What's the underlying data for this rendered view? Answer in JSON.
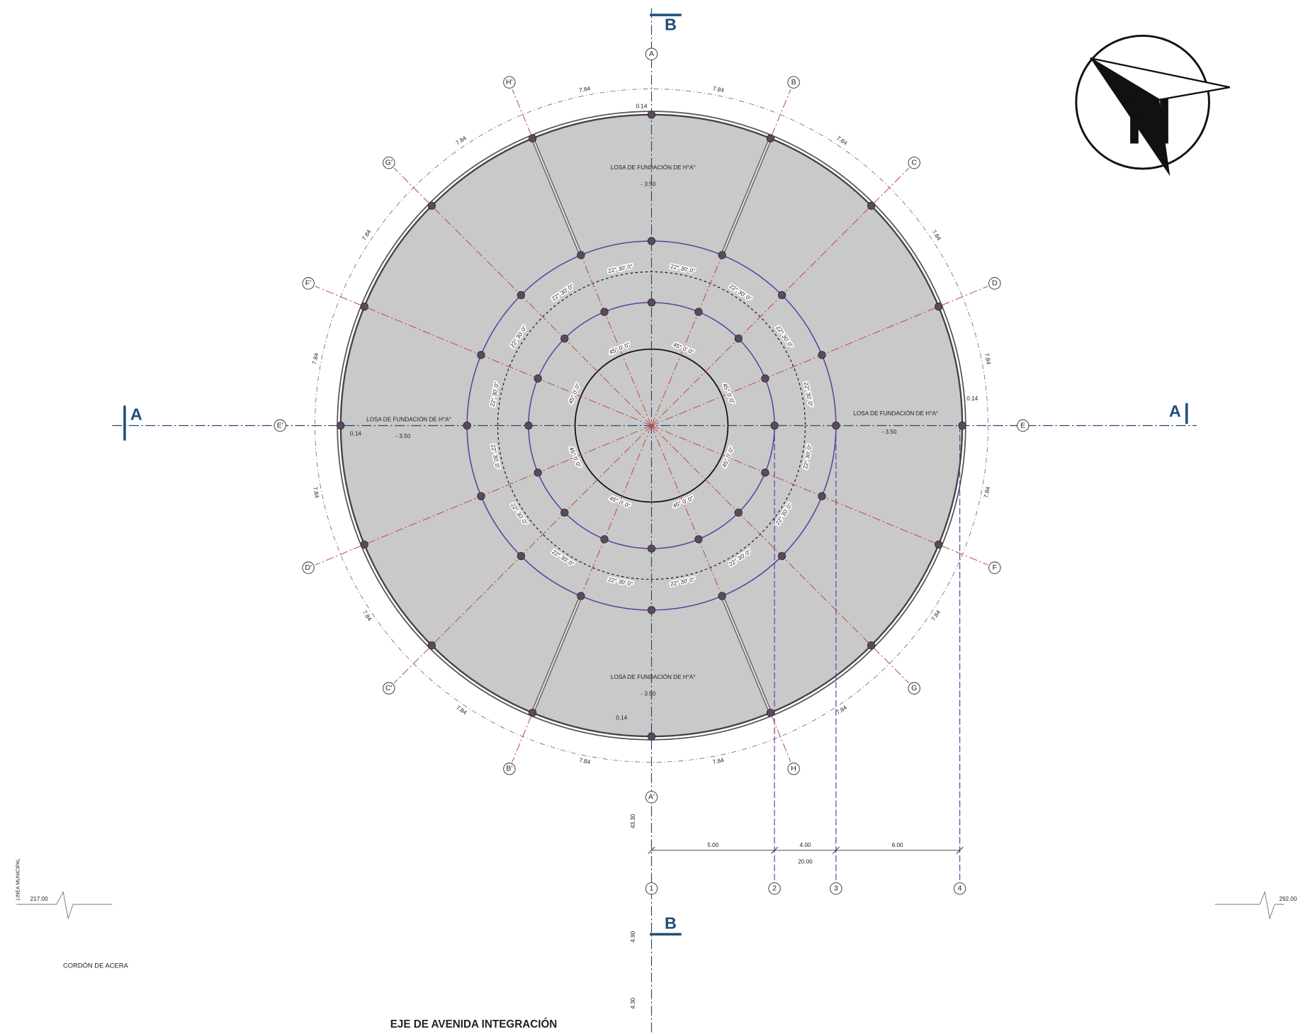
{
  "section_marks": {
    "a_left": "A",
    "a_right": "A",
    "b_top": "B",
    "b_bottom": "B"
  },
  "axes": [
    "A",
    "B",
    "C",
    "D",
    "E",
    "F",
    "G",
    "H",
    "A'",
    "B'",
    "C'",
    "D'",
    "E'",
    "F'",
    "G'",
    "H'"
  ],
  "ring_dimensions": [
    "7.84",
    "7.84",
    "7.84",
    "7.84",
    "7.84",
    "7.84",
    "7.84",
    "7.84",
    "7.84",
    "7.84",
    "7.84",
    "7.84",
    "7.84",
    "7.84",
    "7.84",
    "7.84"
  ],
  "angles_22": [
    "22° 30' 0\"",
    "22° 30' 0\"",
    "22° 30' 0\"",
    "22° 30' 0\"",
    "22° 30' 0\"",
    "22° 30' 0\"",
    "22° 30' 0\"",
    "22° 30' 0\"",
    "22° 30' 0\"",
    "22° 30' 0\"",
    "22° 30' 0\"",
    "22° 30' 0\"",
    "22° 30' 0\"",
    "22° 30' 0\"",
    "22° 30' 0\"",
    "22° 30' 0\""
  ],
  "angles_45": [
    "45° 0' 0\"",
    "45° 0' 0\"",
    "45° 0' 0\"",
    "45° 0' 0\"",
    "45° 0' 0\"",
    "45° 0' 0\"",
    "45° 0' 0\"",
    "45° 0' 0\""
  ],
  "slab_labels": [
    "LOSA DE FUNDACIÓN DE H°A°",
    "LOSA DE FUNDACIÓN DE H°A°",
    "LOSA DE FUNDACIÓN DE H°A°",
    "LOSA DE FUNDACIÓN DE H°A°"
  ],
  "levels": [
    "- 3.50",
    "- 3.50",
    "- 3.50",
    "- 3.50"
  ],
  "thickness": [
    "0.14",
    "0.14",
    "0.14",
    "0.14"
  ],
  "grid": {
    "lines": [
      "1",
      "2",
      "3",
      "4"
    ],
    "dimensions": [
      "5.00",
      "4.00",
      "6.00"
    ],
    "total": "20.00"
  },
  "vertical_dimensions": [
    "43.30",
    "4.90",
    "4.30"
  ],
  "notes": {
    "municipal_line": "LINEA MUNICIPAL",
    "left_level": "217.00",
    "right_level": "292.00",
    "curb": "CORDÓN DE ACERA",
    "avenue": "EJE DE AVENIDA INTEGRACIÓN"
  },
  "north": "N"
}
